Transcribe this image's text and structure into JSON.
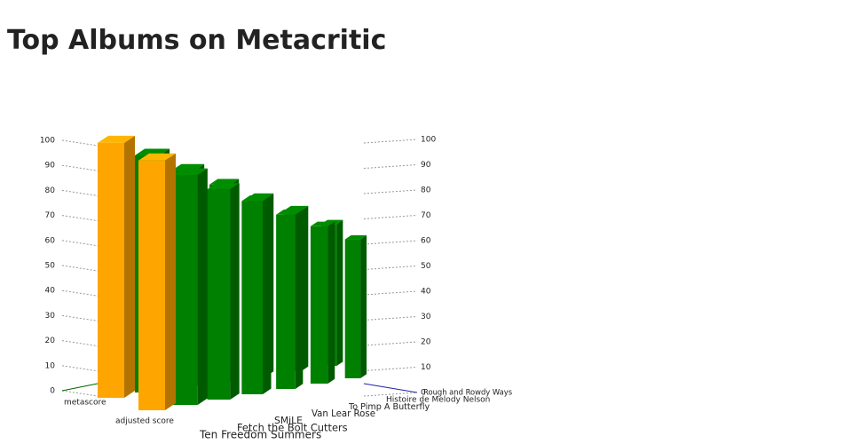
{
  "chart_data": {
    "type": "bar3d",
    "title": "Top Albums on Metacritic",
    "categories": [
      "Ten Freedom Summers",
      "Fetch the Bolt Cutters",
      "SMiLE",
      "Van Lear Rose",
      "To Pimp A Butterfly",
      "Histoire de Melody Nelson",
      "Rough and Rowdy Ways"
    ],
    "bar_colors": [
      "#ffa500",
      "#008000",
      "#008000",
      "#008000",
      "#008000",
      "#008000",
      "#008000"
    ],
    "series": [
      {
        "name": "metascore",
        "values": [
          99,
          99,
          98,
          97,
          96,
          96,
          95
        ]
      },
      {
        "name": "adjusted score",
        "values": [
          97,
          96,
          95,
          95,
          94,
          94,
          93
        ]
      }
    ],
    "ylim": [
      0,
      100
    ],
    "yticks": [
      0,
      10,
      20,
      30,
      40,
      50,
      60,
      70,
      80,
      90,
      100
    ],
    "grid": true
  }
}
